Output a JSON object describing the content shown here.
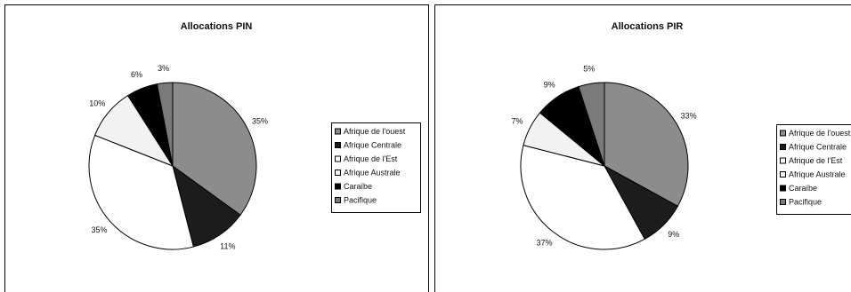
{
  "chart_data": [
    {
      "type": "pie",
      "title": "Allocations PIN",
      "categories": [
        "Afrique de l'ouest",
        "Afrique Centrale",
        "Afrique de l'Est",
        "Afrique Australe",
        "Caraïbe",
        "Pacifique"
      ],
      "values": [
        35,
        11,
        35,
        10,
        6,
        3
      ],
      "value_labels": [
        "35%",
        "11%",
        "35%",
        "10%",
        "6%",
        "3%"
      ],
      "colors": [
        "#8c8c8c",
        "#1c1c1c",
        "#ffffff",
        "#f2f2f2",
        "#000000",
        "#7a7a7a"
      ]
    },
    {
      "type": "pie",
      "title": "Allocations PIR",
      "categories": [
        "Afrique de l'ouest",
        "Afrique Centrale",
        "Afrique de l'Est",
        "Afrique Australe",
        "Caraïbe",
        "Pacifique"
      ],
      "values": [
        33,
        9,
        37,
        7,
        9,
        5
      ],
      "value_labels": [
        "33%",
        "9%",
        "37%",
        "7%",
        "9%",
        "5%"
      ],
      "colors": [
        "#8c8c8c",
        "#1c1c1c",
        "#ffffff",
        "#f2f2f2",
        "#000000",
        "#7a7a7a"
      ]
    }
  ]
}
